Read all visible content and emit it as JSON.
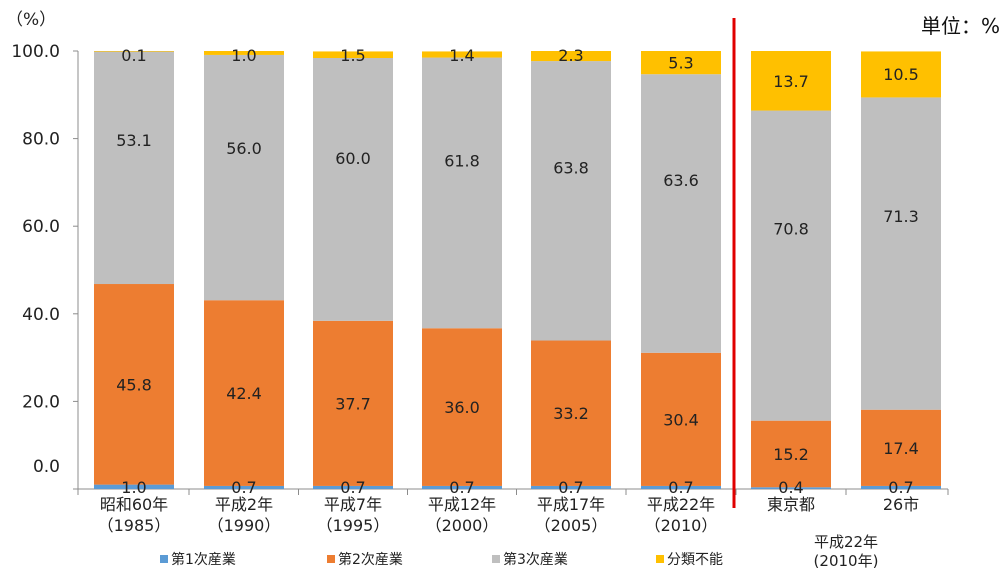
{
  "chart_data": {
    "type": "bar",
    "stacked": true,
    "y_unit": "（%）",
    "unit_note": "単位：%",
    "ylim": [
      0,
      100
    ],
    "yticks": [
      0,
      20,
      40,
      60,
      80,
      100
    ],
    "ytick_labels": [
      "0.0",
      "20.0",
      "40.0",
      "60.0",
      "80.0",
      "100.0"
    ],
    "grid": false,
    "legend_position": "bottom",
    "categories": [
      {
        "label": "昭和60年",
        "sub": "（1985）"
      },
      {
        "label": "平成2年",
        "sub": "（1990）"
      },
      {
        "label": "平成7年",
        "sub": "（1995）"
      },
      {
        "label": "平成12年",
        "sub": "（2000）"
      },
      {
        "label": "平成17年",
        "sub": "（2005）"
      },
      {
        "label": "平成22年",
        "sub": "（2010）"
      },
      {
        "label": "東京都",
        "sub": ""
      },
      {
        "label": "26市",
        "sub": ""
      }
    ],
    "group_label": {
      "line1": "平成22年",
      "line2": "(2010年)"
    },
    "series": [
      {
        "name": "第1次産業",
        "color": "#5B9BD5",
        "values": [
          1.0,
          0.7,
          0.7,
          0.7,
          0.7,
          0.7,
          0.4,
          0.7
        ]
      },
      {
        "name": "第2次産業",
        "color": "#ED7D31",
        "values": [
          45.8,
          42.4,
          37.7,
          36.0,
          33.2,
          30.4,
          15.2,
          17.4
        ]
      },
      {
        "name": "第3次産業",
        "color": "#BFBFBF",
        "values": [
          53.1,
          56.0,
          60.0,
          61.8,
          63.8,
          63.6,
          70.8,
          71.3
        ]
      },
      {
        "name": "分類不能",
        "color": "#FFC000",
        "values": [
          0.1,
          1.0,
          1.5,
          1.4,
          2.3,
          5.3,
          13.7,
          10.5
        ]
      }
    ],
    "value_labels": [
      [
        "1.0",
        "0.7",
        "0.7",
        "0.7",
        "0.7",
        "0.7",
        "0.4",
        "0.7"
      ],
      [
        "45.8",
        "42.4",
        "37.7",
        "36.0",
        "33.2",
        "30.4",
        "15.2",
        "17.4"
      ],
      [
        "53.1",
        "56.0",
        "60.0",
        "61.8",
        "63.8",
        "63.6",
        "70.8",
        "71.3"
      ],
      [
        "0.1",
        "1.0",
        "1.5",
        "1.4",
        "2.3",
        "5.3",
        "13.7",
        "10.5"
      ]
    ],
    "separator_color": "#E00000"
  }
}
